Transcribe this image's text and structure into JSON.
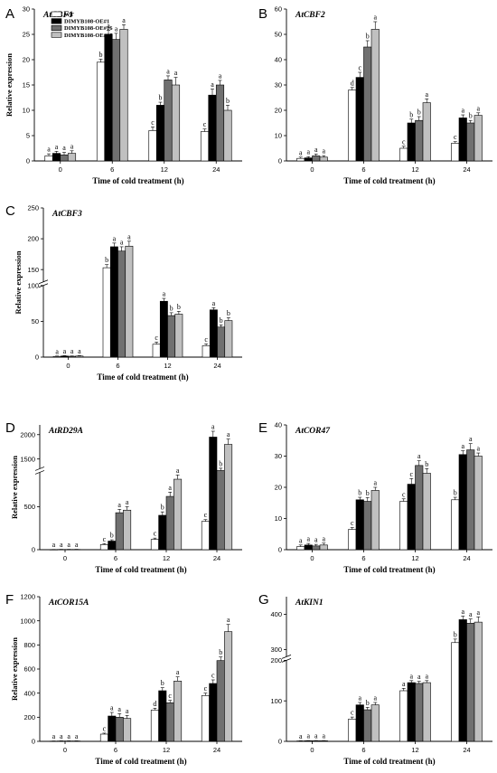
{
  "legend": [
    {
      "name": "WT",
      "color": "#ffffff"
    },
    {
      "name": "DIMYB108-OE#1",
      "color": "#000000"
    },
    {
      "name": "DIMYB108-OE#16",
      "color": "#707070"
    },
    {
      "name": "DIMYB108-OE#17",
      "color": "#c0c0c0"
    }
  ],
  "chart_data": [
    {
      "panel": "A",
      "title": "AtCBF1",
      "type": "bar",
      "categories": [
        "0",
        "6",
        "12",
        "24"
      ],
      "xlabel": "Time of cold treatment (h)",
      "ylabel": "Relative expression",
      "ylim": [
        0,
        30
      ],
      "yticks": [
        0,
        5,
        10,
        15,
        20,
        25,
        30
      ],
      "series": [
        {
          "name": "WT",
          "values": [
            1.0,
            19.5,
            6.0,
            5.8
          ],
          "errors": [
            0.4,
            0.6,
            0.7,
            0.5
          ],
          "letters": [
            "a",
            "b",
            "c",
            "c"
          ]
        },
        {
          "name": "DIMYB108-OE#1",
          "values": [
            1.5,
            25.0,
            11.0,
            13.0
          ],
          "errors": [
            0.4,
            0.8,
            0.6,
            1.2
          ],
          "letters": [
            "a",
            "a",
            "b",
            "a"
          ]
        },
        {
          "name": "DIMYB108-OE#16",
          "values": [
            1.2,
            24.0,
            16.0,
            15.0
          ],
          "errors": [
            0.5,
            1.2,
            0.8,
            0.9
          ],
          "letters": [
            "a",
            "a",
            "a",
            "a"
          ]
        },
        {
          "name": "DIMYB108-OE#17",
          "values": [
            1.5,
            26.0,
            15.0,
            10.0
          ],
          "errors": [
            0.5,
            0.9,
            1.5,
            1.0
          ],
          "letters": [
            "a",
            "a",
            "a",
            "b"
          ]
        }
      ]
    },
    {
      "panel": "B",
      "title": "AtCBF2",
      "type": "bar",
      "categories": [
        "0",
        "6",
        "12",
        "24"
      ],
      "xlabel": "Time of cold treatment (h)",
      "ylabel": "",
      "ylim": [
        0,
        60
      ],
      "yticks": [
        0,
        10,
        20,
        30,
        40,
        50,
        60
      ],
      "series": [
        {
          "name": "WT",
          "values": [
            1.0,
            28.0,
            5.0,
            7.0
          ],
          "errors": [
            0.5,
            1.0,
            0.8,
            0.6
          ],
          "letters": [
            "a",
            "d",
            "c",
            "c"
          ]
        },
        {
          "name": "DIMYB108-OE#1",
          "values": [
            1.2,
            33.0,
            15.0,
            17.0
          ],
          "errors": [
            0.5,
            2.0,
            1.5,
            1.2
          ],
          "letters": [
            "a",
            "c",
            "b",
            "a"
          ]
        },
        {
          "name": "DIMYB108-OE#16",
          "values": [
            2.0,
            45.0,
            16.0,
            15.0
          ],
          "errors": [
            0.7,
            2.5,
            1.5,
            1.0
          ],
          "letters": [
            "a",
            "b",
            "b",
            "b"
          ]
        },
        {
          "name": "DIMYB108-OE#17",
          "values": [
            1.5,
            52.0,
            23.0,
            18.0
          ],
          "errors": [
            0.6,
            3.0,
            1.5,
            1.0
          ],
          "letters": [
            "a",
            "a",
            "a",
            "a"
          ]
        }
      ]
    },
    {
      "panel": "C",
      "title": "AtCBF3",
      "type": "bar",
      "categories": [
        "0",
        "6",
        "12",
        "24"
      ],
      "xlabel": "Time of cold treatment (h)",
      "ylabel": "Relative expression",
      "ylim": [
        0,
        250
      ],
      "yticks": [
        0,
        50,
        100,
        150,
        200,
        250
      ],
      "axis_break": [
        100,
        130
      ],
      "series": [
        {
          "name": "WT",
          "values": [
            1.0,
            153.0,
            18.0,
            16.0
          ],
          "errors": [
            0.5,
            5.0,
            3.0,
            2.5
          ],
          "letters": [
            "a",
            "b",
            "c",
            "c"
          ]
        },
        {
          "name": "DIMYB108-OE#1",
          "values": [
            1.5,
            187.0,
            78.0,
            66.0
          ],
          "errors": [
            0.5,
            6.0,
            4.0,
            3.0
          ],
          "letters": [
            "a",
            "a",
            "a",
            "a"
          ]
        },
        {
          "name": "DIMYB108-OE#16",
          "values": [
            1.2,
            180.0,
            58.0,
            42.0
          ],
          "errors": [
            0.4,
            7.0,
            4.0,
            3.0
          ],
          "letters": [
            "a",
            "a",
            "b",
            "b"
          ]
        },
        {
          "name": "DIMYB108-OE#17",
          "values": [
            1.5,
            188.0,
            60.0,
            51.0
          ],
          "errors": [
            0.5,
            8.0,
            4.0,
            4.0
          ],
          "letters": [
            "a",
            "a",
            "b",
            "b"
          ]
        }
      ]
    },
    {
      "panel": "D",
      "title": "AtRD29A",
      "type": "bar",
      "categories": [
        "0",
        "6",
        "12",
        "24"
      ],
      "xlabel": "Time of cold treatment (h)",
      "ylabel": "Relative expression",
      "ylim": [
        0,
        2200
      ],
      "yticks": [
        0,
        500,
        1500,
        2000
      ],
      "axis_break": [
        900,
        1300
      ],
      "series": [
        {
          "name": "WT",
          "values": [
            2,
            60,
            120,
            330
          ],
          "errors": [
            1,
            10,
            15,
            20
          ],
          "letters": [
            "a",
            "c",
            "c",
            "c"
          ]
        },
        {
          "name": "DIMYB108-OE#1",
          "values": [
            3,
            100,
            400,
            1950
          ],
          "errors": [
            1,
            15,
            40,
            120
          ],
          "letters": [
            "a",
            "b",
            "b",
            "a"
          ]
        },
        {
          "name": "DIMYB108-OE#16",
          "values": [
            3,
            430,
            620,
            1250
          ],
          "errors": [
            1,
            40,
            50,
            60
          ],
          "letters": [
            "a",
            "a",
            "a",
            "b"
          ]
        },
        {
          "name": "DIMYB108-OE#17",
          "values": [
            3,
            460,
            820,
            1800
          ],
          "errors": [
            1,
            40,
            50,
            110
          ],
          "letters": [
            "a",
            "a",
            "a",
            "a"
          ]
        }
      ]
    },
    {
      "panel": "E",
      "title": "AtCOR47",
      "type": "bar",
      "categories": [
        "0",
        "6",
        "12",
        "24"
      ],
      "xlabel": "Time of cold treatment (h)",
      "ylabel": "",
      "ylim": [
        0,
        40
      ],
      "yticks": [
        0,
        10,
        20,
        30,
        40
      ],
      "series": [
        {
          "name": "WT",
          "values": [
            1.0,
            6.5,
            15.5,
            16.0
          ],
          "errors": [
            0.5,
            0.6,
            0.8,
            0.8
          ],
          "letters": [
            "a",
            "c",
            "c",
            "b"
          ]
        },
        {
          "name": "DIMYB108-OE#1",
          "values": [
            1.5,
            16.0,
            21.0,
            30.5
          ],
          "errors": [
            0.5,
            0.8,
            1.8,
            1.2
          ],
          "letters": [
            "a",
            "b",
            "c",
            "a"
          ]
        },
        {
          "name": "DIMYB108-OE#16",
          "values": [
            1.2,
            15.5,
            27.0,
            32.0
          ],
          "errors": [
            0.5,
            1.2,
            1.5,
            2.0
          ],
          "letters": [
            "a",
            "b",
            "a",
            "a"
          ]
        },
        {
          "name": "DIMYB108-OE#17",
          "values": [
            1.5,
            19.0,
            24.5,
            30.0
          ],
          "errors": [
            0.6,
            1.0,
            1.5,
            1.0
          ],
          "letters": [
            "a",
            "a",
            "b",
            "a"
          ]
        }
      ]
    },
    {
      "panel": "F",
      "title": "AtCOR15A",
      "type": "bar",
      "categories": [
        "0",
        "6",
        "12",
        "24"
      ],
      "xlabel": "Time of cold treatment (h)",
      "ylabel": "Relative expression",
      "ylim": [
        0,
        1200
      ],
      "yticks": [
        0,
        200,
        400,
        600,
        800,
        1000,
        1200
      ],
      "series": [
        {
          "name": "WT",
          "values": [
            2,
            60,
            260,
            380
          ],
          "errors": [
            1,
            8,
            15,
            20
          ],
          "letters": [
            "a",
            "c",
            "d",
            "c"
          ]
        },
        {
          "name": "DIMYB108-OE#1",
          "values": [
            3,
            210,
            420,
            480
          ],
          "errors": [
            1,
            30,
            25,
            30
          ],
          "letters": [
            "a",
            "a",
            "b",
            "c"
          ]
        },
        {
          "name": "DIMYB108-OE#16",
          "values": [
            3,
            200,
            320,
            670
          ],
          "errors": [
            1,
            30,
            20,
            30
          ],
          "letters": [
            "a",
            "a",
            "c",
            "b"
          ]
        },
        {
          "name": "DIMYB108-OE#17",
          "values": [
            3,
            190,
            500,
            910
          ],
          "errors": [
            1,
            25,
            35,
            60
          ],
          "letters": [
            "a",
            "a",
            "a",
            "a"
          ]
        }
      ]
    },
    {
      "panel": "G",
      "title": "AtKIN1",
      "type": "bar",
      "categories": [
        "0",
        "6",
        "12",
        "24"
      ],
      "xlabel": "Time of cold treatment (h)",
      "ylabel": "",
      "ylim": [
        0,
        450
      ],
      "yticks": [
        0,
        100,
        200,
        300,
        400
      ],
      "axis_break": [
        200,
        280
      ],
      "series": [
        {
          "name": "WT",
          "values": [
            1,
            55,
            125,
            320
          ],
          "errors": [
            0.5,
            5,
            6,
            10
          ],
          "letters": [
            "a",
            "c",
            "a",
            "b"
          ]
        },
        {
          "name": "DIMYB108-OE#1",
          "values": [
            1.5,
            90,
            145,
            385
          ],
          "errors": [
            0.5,
            6,
            5,
            10
          ],
          "letters": [
            "a",
            "a",
            "a",
            "a"
          ]
        },
        {
          "name": "DIMYB108-OE#16",
          "values": [
            1.5,
            78,
            143,
            375
          ],
          "errors": [
            0.5,
            6,
            5,
            12
          ],
          "letters": [
            "a",
            "b",
            "a",
            "a"
          ]
        },
        {
          "name": "DIMYB108-OE#17",
          "values": [
            1.5,
            90,
            145,
            378
          ],
          "errors": [
            0.5,
            6,
            5,
            15
          ],
          "letters": [
            "a",
            "a",
            "a",
            "a"
          ]
        }
      ]
    }
  ]
}
